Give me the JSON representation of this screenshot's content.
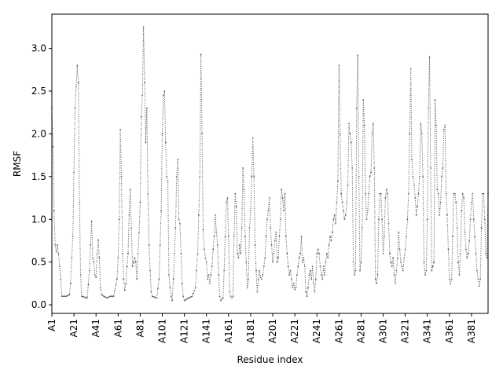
{
  "chart_data": {
    "type": "line",
    "title": "",
    "xlabel": "Residue index",
    "ylabel": "RMSF",
    "ylim": [
      -0.1,
      3.4
    ],
    "yticks": [
      0.0,
      0.5,
      1.0,
      1.5,
      2.0,
      2.5,
      3.0
    ],
    "ytick_labels": [
      "0.0",
      "0.5",
      "1.0",
      "1.5",
      "2.0",
      "2.5",
      "3.0"
    ],
    "xtick_labels": [
      "A1",
      "A21",
      "A41",
      "A61",
      "A81",
      "A101",
      "A121",
      "A141",
      "A161",
      "A181",
      "A201",
      "A221",
      "A241",
      "A261",
      "A281",
      "A301",
      "A321",
      "A341",
      "A361",
      "A381"
    ],
    "xtick_step": 20,
    "n_residues": 396,
    "grid": false,
    "line_color": "#666666",
    "line_style": "dotted",
    "marker": "dot",
    "keypoints": [
      [
        1,
        2.3
      ],
      [
        2,
        1.85
      ],
      [
        3,
        1.1
      ],
      [
        4,
        0.7
      ],
      [
        5,
        0.62
      ],
      [
        6,
        0.7
      ],
      [
        7,
        0.6
      ],
      [
        8,
        0.45
      ],
      [
        9,
        0.3
      ],
      [
        10,
        0.1
      ],
      [
        14,
        0.1
      ],
      [
        17,
        0.12
      ],
      [
        18,
        0.25
      ],
      [
        19,
        0.55
      ],
      [
        20,
        0.8
      ],
      [
        21,
        1.55
      ],
      [
        22,
        2.3
      ],
      [
        23,
        2.55
      ],
      [
        24,
        2.8
      ],
      [
        25,
        2.6
      ],
      [
        26,
        1.2
      ],
      [
        27,
        0.35
      ],
      [
        28,
        0.1
      ],
      [
        33,
        0.08
      ],
      [
        35,
        0.4
      ],
      [
        36,
        0.7
      ],
      [
        37,
        0.98
      ],
      [
        38,
        0.55
      ],
      [
        39,
        0.5
      ],
      [
        40,
        0.35
      ],
      [
        41,
        0.32
      ],
      [
        42,
        0.6
      ],
      [
        43,
        0.76
      ],
      [
        44,
        0.55
      ],
      [
        45,
        0.2
      ],
      [
        46,
        0.12
      ],
      [
        48,
        0.1
      ],
      [
        51,
        0.08
      ],
      [
        54,
        0.1
      ],
      [
        57,
        0.1
      ],
      [
        60,
        0.3
      ],
      [
        61,
        0.55
      ],
      [
        62,
        1.0
      ],
      [
        63,
        2.05
      ],
      [
        64,
        1.5
      ],
      [
        65,
        0.6
      ],
      [
        66,
        0.3
      ],
      [
        67,
        0.17
      ],
      [
        68,
        0.25
      ],
      [
        69,
        0.45
      ],
      [
        70,
        0.6
      ],
      [
        71,
        1.05
      ],
      [
        72,
        1.35
      ],
      [
        73,
        0.9
      ],
      [
        74,
        0.45
      ],
      [
        75,
        0.5
      ],
      [
        76,
        0.55
      ],
      [
        77,
        0.5
      ],
      [
        78,
        0.3
      ],
      [
        79,
        0.6
      ],
      [
        80,
        0.85
      ],
      [
        81,
        1.2
      ],
      [
        82,
        2.2
      ],
      [
        83,
        2.45
      ],
      [
        84,
        3.25
      ],
      [
        85,
        2.6
      ],
      [
        86,
        1.9
      ],
      [
        87,
        2.3
      ],
      [
        88,
        1.3
      ],
      [
        89,
        0.7
      ],
      [
        90,
        0.4
      ],
      [
        91,
        0.15
      ],
      [
        92,
        0.1
      ],
      [
        96,
        0.08
      ],
      [
        98,
        0.3
      ],
      [
        100,
        1.1
      ],
      [
        101,
        2.0
      ],
      [
        102,
        2.45
      ],
      [
        103,
        2.5
      ],
      [
        104,
        1.9
      ],
      [
        105,
        1.5
      ],
      [
        106,
        1.45
      ],
      [
        107,
        0.35
      ],
      [
        108,
        0.2
      ],
      [
        109,
        0.1
      ],
      [
        110,
        0.05
      ],
      [
        111,
        0.3
      ],
      [
        112,
        0.6
      ],
      [
        113,
        0.9
      ],
      [
        114,
        1.5
      ],
      [
        115,
        1.7
      ],
      [
        116,
        1.0
      ],
      [
        117,
        0.95
      ],
      [
        118,
        0.6
      ],
      [
        119,
        0.25
      ],
      [
        120,
        0.1
      ],
      [
        121,
        0.05
      ],
      [
        125,
        0.08
      ],
      [
        128,
        0.1
      ],
      [
        131,
        0.2
      ],
      [
        133,
        0.6
      ],
      [
        134,
        1.05
      ],
      [
        135,
        1.5
      ],
      [
        136,
        2.93
      ],
      [
        137,
        2.0
      ],
      [
        138,
        0.88
      ],
      [
        139,
        0.65
      ],
      [
        140,
        0.55
      ],
      [
        141,
        0.5
      ],
      [
        142,
        0.3
      ],
      [
        143,
        0.35
      ],
      [
        144,
        0.25
      ],
      [
        145,
        0.35
      ],
      [
        146,
        0.45
      ],
      [
        147,
        0.65
      ],
      [
        148,
        0.8
      ],
      [
        149,
        1.05
      ],
      [
        150,
        0.85
      ],
      [
        151,
        0.7
      ],
      [
        152,
        0.35
      ],
      [
        153,
        0.1
      ],
      [
        154,
        0.05
      ],
      [
        156,
        0.08
      ],
      [
        157,
        0.4
      ],
      [
        158,
        0.8
      ],
      [
        159,
        1.2
      ],
      [
        160,
        1.25
      ],
      [
        161,
        0.8
      ],
      [
        162,
        0.15
      ],
      [
        163,
        0.1
      ],
      [
        164,
        0.08
      ],
      [
        165,
        0.1
      ],
      [
        166,
        0.8
      ],
      [
        167,
        1.3
      ],
      [
        168,
        1.15
      ],
      [
        169,
        0.6
      ],
      [
        170,
        0.55
      ],
      [
        171,
        0.7
      ],
      [
        172,
        0.6
      ],
      [
        173,
        0.9
      ],
      [
        174,
        1.6
      ],
      [
        175,
        1.35
      ],
      [
        176,
        0.8
      ],
      [
        177,
        0.5
      ],
      [
        178,
        0.2
      ],
      [
        179,
        0.3
      ],
      [
        180,
        0.9
      ],
      [
        181,
        1.1
      ],
      [
        182,
        1.5
      ],
      [
        183,
        1.95
      ],
      [
        184,
        1.5
      ],
      [
        185,
        0.7
      ],
      [
        186,
        0.4
      ],
      [
        187,
        0.15
      ],
      [
        188,
        0.3
      ],
      [
        189,
        0.4
      ],
      [
        190,
        0.32
      ],
      [
        191,
        0.3
      ],
      [
        192,
        0.35
      ],
      [
        193,
        0.45
      ],
      [
        194,
        0.55
      ],
      [
        195,
        0.8
      ],
      [
        196,
        1.0
      ],
      [
        197,
        1.1
      ],
      [
        198,
        1.25
      ],
      [
        199,
        0.9
      ],
      [
        200,
        0.7
      ],
      [
        201,
        0.5
      ],
      [
        202,
        0.6
      ],
      [
        203,
        0.75
      ],
      [
        204,
        0.85
      ],
      [
        205,
        0.5
      ],
      [
        206,
        0.55
      ],
      [
        207,
        0.8
      ],
      [
        208,
        1.0
      ],
      [
        209,
        1.35
      ],
      [
        210,
        1.25
      ],
      [
        211,
        1.1
      ],
      [
        212,
        1.3
      ],
      [
        213,
        0.8
      ],
      [
        214,
        0.6
      ],
      [
        215,
        0.45
      ],
      [
        216,
        0.35
      ],
      [
        217,
        0.4
      ],
      [
        218,
        0.3
      ],
      [
        219,
        0.2
      ],
      [
        220,
        0.25
      ],
      [
        221,
        0.18
      ],
      [
        222,
        0.2
      ],
      [
        223,
        0.35
      ],
      [
        224,
        0.45
      ],
      [
        225,
        0.55
      ],
      [
        226,
        0.6
      ],
      [
        227,
        0.8
      ],
      [
        228,
        0.5
      ],
      [
        229,
        0.55
      ],
      [
        230,
        0.45
      ],
      [
        231,
        0.15
      ],
      [
        232,
        0.1
      ],
      [
        233,
        0.2
      ],
      [
        234,
        0.35
      ],
      [
        235,
        0.4
      ],
      [
        236,
        0.3
      ],
      [
        237,
        0.45
      ],
      [
        238,
        0.25
      ],
      [
        239,
        0.15
      ],
      [
        240,
        0.3
      ],
      [
        241,
        0.6
      ],
      [
        242,
        0.65
      ],
      [
        243,
        0.6
      ],
      [
        244,
        0.45
      ],
      [
        245,
        0.35
      ],
      [
        246,
        0.3
      ],
      [
        247,
        0.45
      ],
      [
        248,
        0.35
      ],
      [
        249,
        0.5
      ],
      [
        250,
        0.6
      ],
      [
        251,
        0.55
      ],
      [
        252,
        0.7
      ],
      [
        253,
        0.8
      ],
      [
        254,
        0.75
      ],
      [
        255,
        0.85
      ],
      [
        256,
        1.0
      ],
      [
        257,
        1.05
      ],
      [
        258,
        0.95
      ],
      [
        259,
        1.2
      ],
      [
        260,
        1.45
      ],
      [
        261,
        2.8
      ],
      [
        262,
        2.0
      ],
      [
        263,
        1.3
      ],
      [
        264,
        1.2
      ],
      [
        265,
        1.1
      ],
      [
        266,
        1.0
      ],
      [
        267,
        1.05
      ],
      [
        268,
        1.2
      ],
      [
        269,
        1.4
      ],
      [
        270,
        2.12
      ],
      [
        271,
        2.0
      ],
      [
        272,
        1.9
      ],
      [
        273,
        1.6
      ],
      [
        274,
        0.5
      ],
      [
        275,
        0.35
      ],
      [
        276,
        0.4
      ],
      [
        277,
        2.3
      ],
      [
        278,
        2.92
      ],
      [
        279,
        1.5
      ],
      [
        280,
        0.4
      ],
      [
        281,
        0.5
      ],
      [
        282,
        0.9
      ],
      [
        283,
        2.4
      ],
      [
        284,
        2.1
      ],
      [
        285,
        1.3
      ],
      [
        286,
        1.0
      ],
      [
        287,
        1.1
      ],
      [
        288,
        1.3
      ],
      [
        289,
        1.5
      ],
      [
        290,
        1.55
      ],
      [
        291,
        2.0
      ],
      [
        292,
        2.12
      ],
      [
        293,
        1.6
      ],
      [
        294,
        0.3
      ],
      [
        295,
        0.25
      ],
      [
        296,
        0.35
      ],
      [
        297,
        1.0
      ],
      [
        298,
        1.3
      ],
      [
        299,
        1.3
      ],
      [
        300,
        1.0
      ],
      [
        301,
        0.6
      ],
      [
        302,
        0.8
      ],
      [
        303,
        1.25
      ],
      [
        304,
        1.35
      ],
      [
        305,
        1.3
      ],
      [
        306,
        0.95
      ],
      [
        307,
        0.6
      ],
      [
        308,
        0.5
      ],
      [
        309,
        0.45
      ],
      [
        310,
        0.55
      ],
      [
        311,
        0.35
      ],
      [
        312,
        0.25
      ],
      [
        313,
        0.4
      ],
      [
        314,
        0.55
      ],
      [
        315,
        0.85
      ],
      [
        316,
        0.65
      ],
      [
        317,
        0.5
      ],
      [
        318,
        0.45
      ],
      [
        319,
        0.4
      ],
      [
        320,
        0.55
      ],
      [
        321,
        0.65
      ],
      [
        322,
        0.8
      ],
      [
        323,
        1.0
      ],
      [
        324,
        1.3
      ],
      [
        325,
        2.0
      ],
      [
        326,
        2.76
      ],
      [
        327,
        1.7
      ],
      [
        328,
        1.5
      ],
      [
        329,
        1.4
      ],
      [
        330,
        1.25
      ],
      [
        331,
        1.05
      ],
      [
        332,
        1.15
      ],
      [
        333,
        1.3
      ],
      [
        334,
        1.5
      ],
      [
        335,
        2.12
      ],
      [
        336,
        2.0
      ],
      [
        337,
        1.5
      ],
      [
        338,
        0.5
      ],
      [
        339,
        0.35
      ],
      [
        340,
        0.4
      ],
      [
        341,
        1.0
      ],
      [
        342,
        2.3
      ],
      [
        343,
        2.9
      ],
      [
        344,
        1.6
      ],
      [
        345,
        0.4
      ],
      [
        346,
        0.45
      ],
      [
        347,
        0.5
      ],
      [
        348,
        2.4
      ],
      [
        349,
        2.1
      ],
      [
        350,
        1.35
      ],
      [
        351,
        1.3
      ],
      [
        352,
        1.05
      ],
      [
        353,
        1.2
      ],
      [
        354,
        1.5
      ],
      [
        355,
        1.6
      ],
      [
        356,
        2.05
      ],
      [
        357,
        2.1
      ],
      [
        358,
        1.3
      ],
      [
        359,
        1.05
      ],
      [
        360,
        0.65
      ],
      [
        361,
        0.3
      ],
      [
        362,
        0.25
      ],
      [
        363,
        0.3
      ],
      [
        364,
        0.8
      ],
      [
        365,
        1.3
      ],
      [
        366,
        1.3
      ],
      [
        367,
        1.2
      ],
      [
        368,
        0.9
      ],
      [
        369,
        0.5
      ],
      [
        370,
        0.35
      ],
      [
        371,
        0.6
      ],
      [
        372,
        1.1
      ],
      [
        373,
        1.3
      ],
      [
        374,
        1.25
      ],
      [
        375,
        0.85
      ],
      [
        376,
        0.65
      ],
      [
        377,
        0.55
      ],
      [
        378,
        0.6
      ],
      [
        379,
        0.75
      ],
      [
        380,
        1.0
      ],
      [
        381,
        1.2
      ],
      [
        382,
        1.3
      ],
      [
        383,
        1.0
      ],
      [
        384,
        0.8
      ],
      [
        385,
        0.6
      ],
      [
        386,
        0.4
      ],
      [
        387,
        0.3
      ],
      [
        388,
        0.22
      ],
      [
        389,
        0.3
      ],
      [
        390,
        0.9
      ],
      [
        391,
        1.3
      ],
      [
        392,
        1.3
      ],
      [
        393,
        1.0
      ],
      [
        394,
        0.6
      ],
      [
        395,
        0.55
      ],
      [
        396,
        1.3
      ]
    ]
  }
}
